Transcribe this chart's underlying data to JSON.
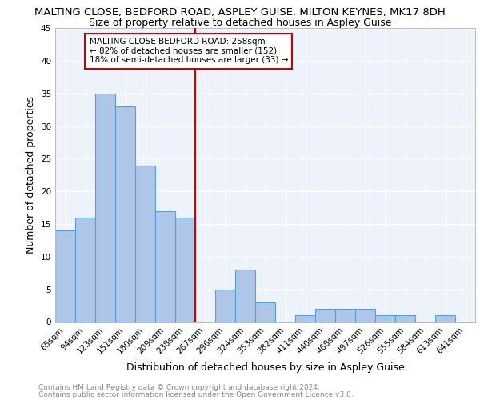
{
  "title": "MALTING CLOSE, BEDFORD ROAD, ASPLEY GUISE, MILTON KEYNES, MK17 8DH",
  "subtitle": "Size of property relative to detached houses in Aspley Guise",
  "xlabel": "Distribution of detached houses by size in Aspley Guise",
  "ylabel": "Number of detached properties",
  "footnote1": "Contains HM Land Registry data © Crown copyright and database right 2024.",
  "footnote2": "Contains public sector information licensed under the Open Government Licence v3.0.",
  "categories": [
    "65sqm",
    "94sqm",
    "123sqm",
    "151sqm",
    "180sqm",
    "209sqm",
    "238sqm",
    "267sqm",
    "296sqm",
    "324sqm",
    "353sqm",
    "382sqm",
    "411sqm",
    "440sqm",
    "468sqm",
    "497sqm",
    "526sqm",
    "555sqm",
    "584sqm",
    "613sqm",
    "641sqm"
  ],
  "values": [
    14,
    16,
    35,
    33,
    24,
    17,
    16,
    0,
    5,
    8,
    3,
    0,
    1,
    2,
    2,
    2,
    1,
    1,
    0,
    1,
    0
  ],
  "bar_color": "#aec6e8",
  "bar_edge_color": "#5a9fd4",
  "vline_x_idx": 7,
  "vline_color": "#cc0000",
  "annotation_title": "MALTING CLOSE BEDFORD ROAD: 258sqm",
  "annotation_line1": "← 82% of detached houses are smaller (152)",
  "annotation_line2": "18% of semi-detached houses are larger (33) →",
  "annotation_box_color": "#cc0000",
  "ylim": [
    0,
    45
  ],
  "yticks": [
    0,
    5,
    10,
    15,
    20,
    25,
    30,
    35,
    40,
    45
  ],
  "background_color": "#eef2fb",
  "grid_color": "#ffffff",
  "title_fontsize": 9.5,
  "subtitle_fontsize": 9,
  "axis_label_fontsize": 9,
  "tick_fontsize": 7.5,
  "footnote_fontsize": 6.5
}
